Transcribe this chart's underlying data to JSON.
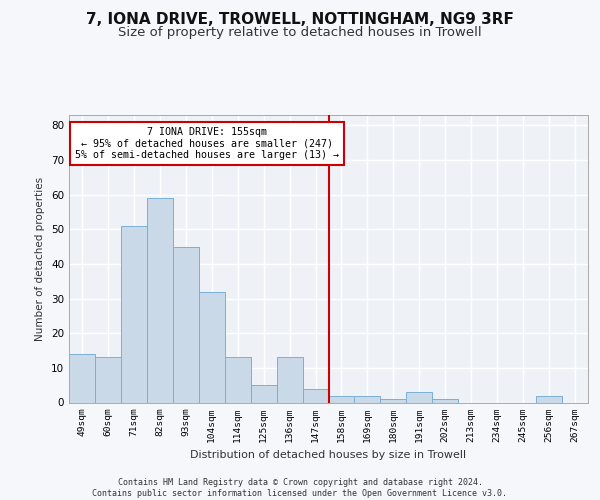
{
  "title_line1": "7, IONA DRIVE, TROWELL, NOTTINGHAM, NG9 3RF",
  "title_line2": "Size of property relative to detached houses in Trowell",
  "xlabel": "Distribution of detached houses by size in Trowell",
  "ylabel": "Number of detached properties",
  "footnote": "Contains HM Land Registry data © Crown copyright and database right 2024.\nContains public sector information licensed under the Open Government Licence v3.0.",
  "categories": [
    "49sqm",
    "60sqm",
    "71sqm",
    "82sqm",
    "93sqm",
    "104sqm",
    "114sqm",
    "125sqm",
    "136sqm",
    "147sqm",
    "158sqm",
    "169sqm",
    "180sqm",
    "191sqm",
    "202sqm",
    "213sqm",
    "234sqm",
    "245sqm",
    "256sqm",
    "267sqm"
  ],
  "values": [
    14,
    13,
    51,
    59,
    45,
    32,
    13,
    5,
    13,
    4,
    2,
    2,
    1,
    3,
    1,
    0,
    0,
    0,
    2,
    0
  ],
  "bar_color": "#c9d9e8",
  "bar_edge_color": "#7bafd4",
  "vline_color": "#cc0000",
  "ylim": [
    0,
    83
  ],
  "yticks": [
    0,
    10,
    20,
    30,
    40,
    50,
    60,
    70,
    80
  ],
  "annotation_text": "7 IONA DRIVE: 155sqm\n← 95% of detached houses are smaller (247)\n5% of semi-detached houses are larger (13) →",
  "title1_fontsize": 11,
  "title2_fontsize": 9.5,
  "bg_color": "#eef2f7",
  "grid_color": "#ffffff",
  "axis_label_color": "#333333",
  "footnote_fontsize": 6.0
}
